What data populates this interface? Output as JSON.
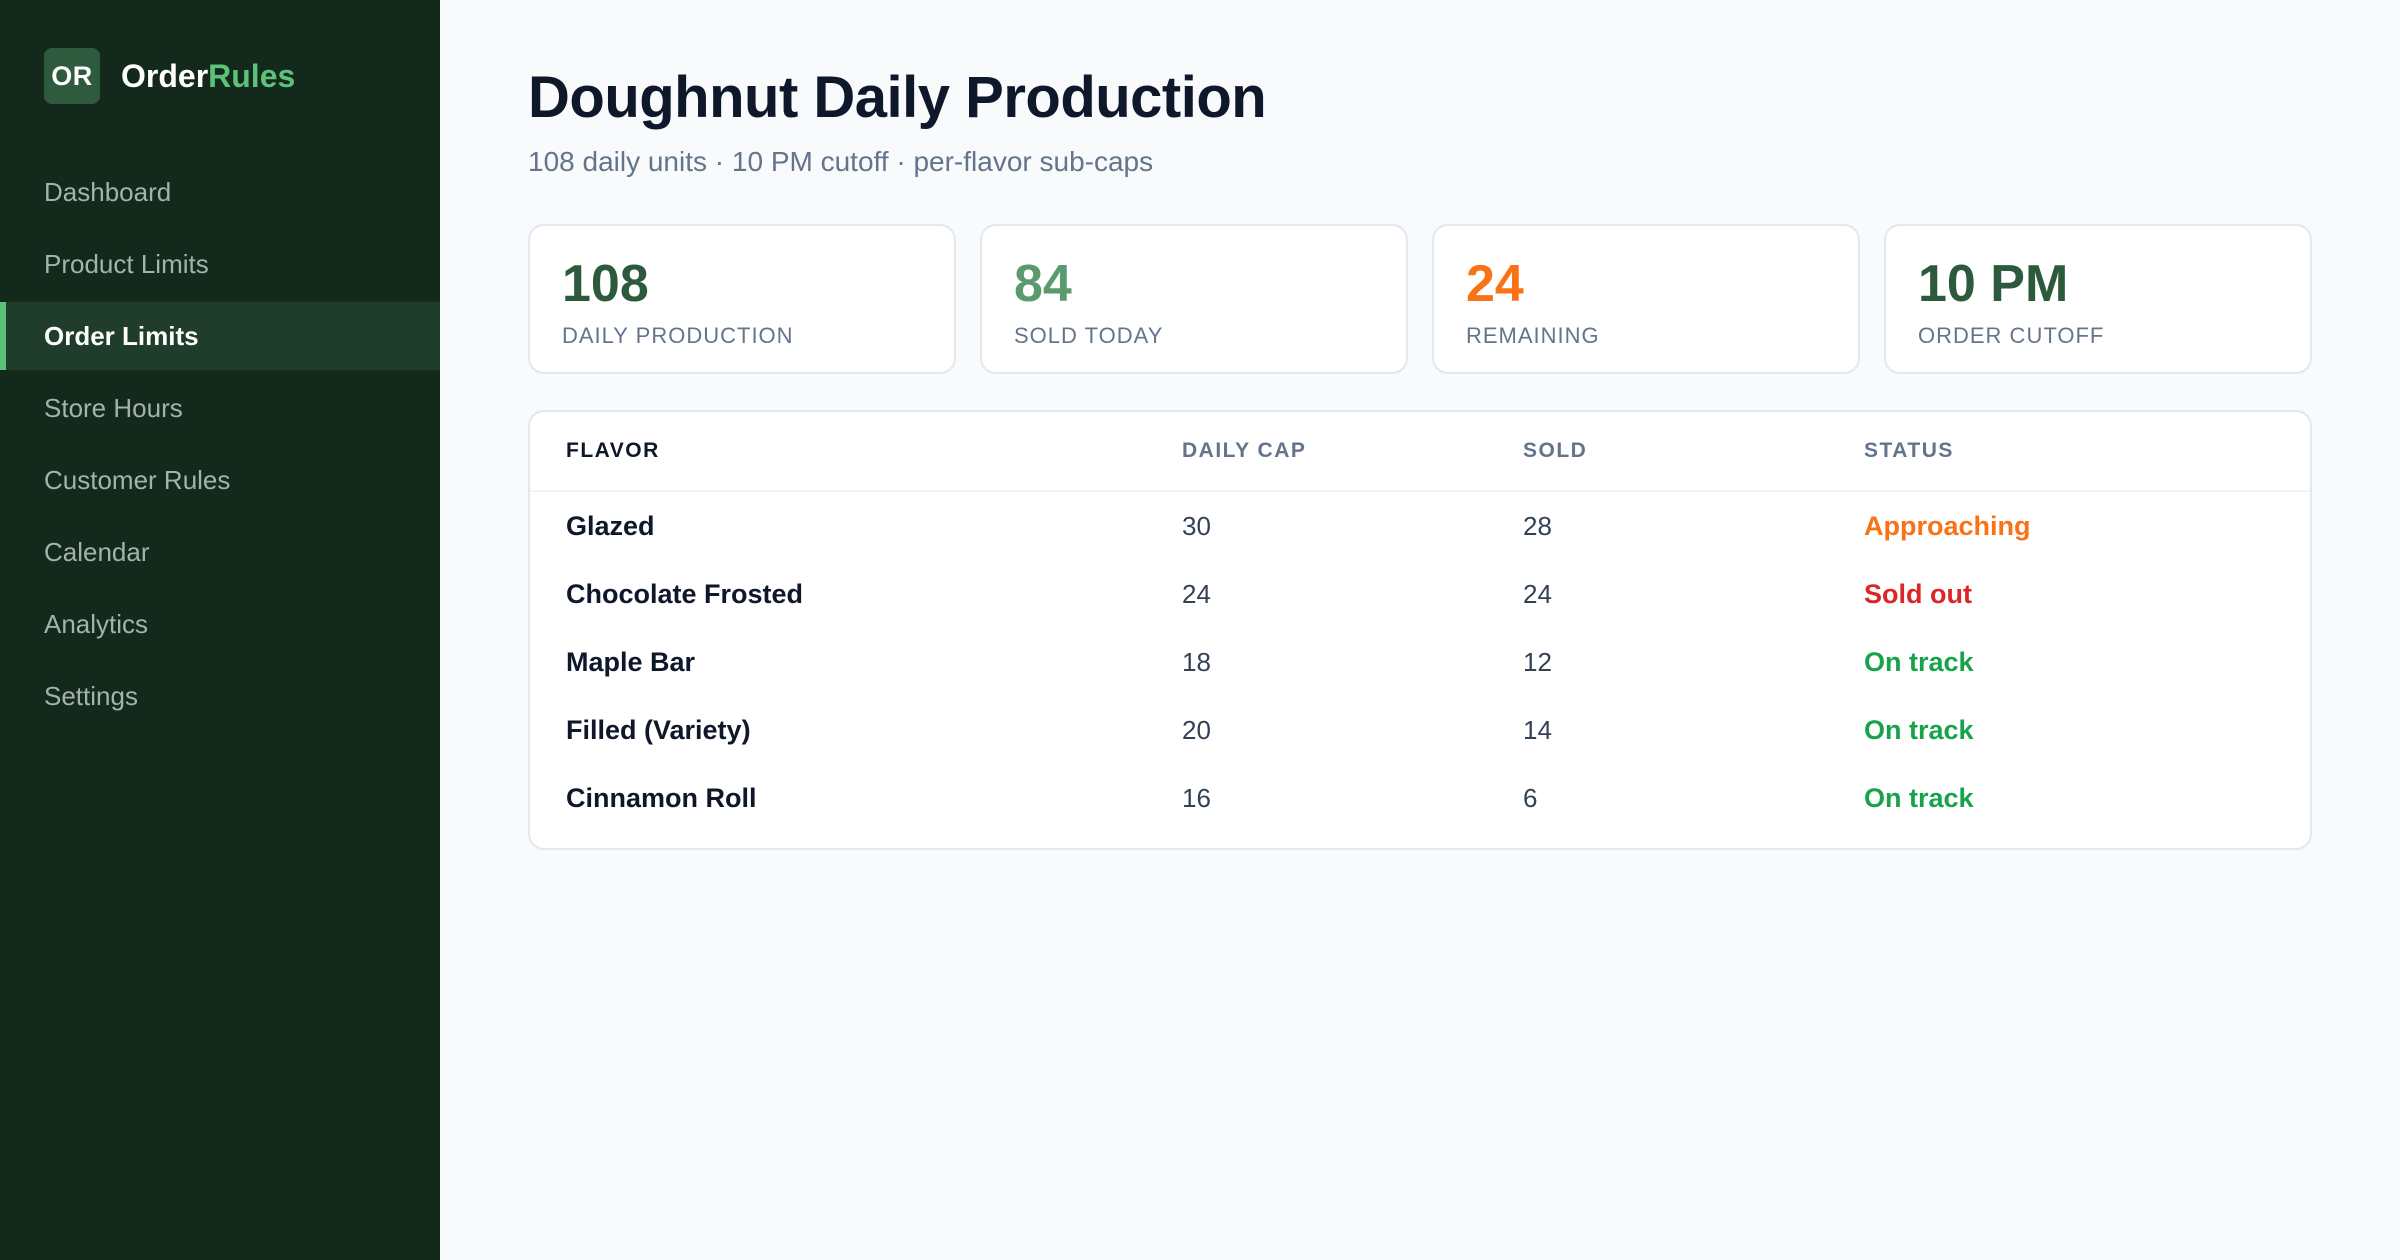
{
  "brand": {
    "logo_text": "OR",
    "name_part1": "Order",
    "name_part2": "Rules",
    "accent_color": "#5cc27a"
  },
  "sidebar": {
    "items": [
      {
        "label": "Dashboard",
        "active": false
      },
      {
        "label": "Product Limits",
        "active": false
      },
      {
        "label": "Order Limits",
        "active": true
      },
      {
        "label": "Store Hours",
        "active": false
      },
      {
        "label": "Customer Rules",
        "active": false
      },
      {
        "label": "Calendar",
        "active": false
      },
      {
        "label": "Analytics",
        "active": false
      },
      {
        "label": "Settings",
        "active": false
      }
    ]
  },
  "header": {
    "title": "Doughnut Daily Production",
    "subtitle": "108 daily units · 10 PM cutoff · per-flavor sub-caps"
  },
  "stats": [
    {
      "value": "108",
      "label": "DAILY PRODUCTION",
      "color": "#2d5a3d"
    },
    {
      "value": "84",
      "label": "SOLD TODAY",
      "color": "#5a9a6e"
    },
    {
      "value": "24",
      "label": "REMAINING",
      "color": "#f97316"
    },
    {
      "value": "10 PM",
      "label": "ORDER CUTOFF",
      "color": "#2d5a3d"
    }
  ],
  "table": {
    "headers": {
      "flavor": "FLAVOR",
      "cap": "DAILY CAP",
      "sold": "SOLD",
      "status": "STATUS"
    },
    "rows": [
      {
        "flavor": "Glazed",
        "cap": "30",
        "sold": "28",
        "status": "Approaching",
        "status_color": "#f97316"
      },
      {
        "flavor": "Chocolate Frosted",
        "cap": "24",
        "sold": "24",
        "status": "Sold out",
        "status_color": "#dc2626"
      },
      {
        "flavor": "Maple Bar",
        "cap": "18",
        "sold": "12",
        "status": "On track",
        "status_color": "#16a34a"
      },
      {
        "flavor": "Filled (Variety)",
        "cap": "20",
        "sold": "14",
        "status": "On track",
        "status_color": "#16a34a"
      },
      {
        "flavor": "Cinnamon Roll",
        "cap": "16",
        "sold": "6",
        "status": "On track",
        "status_color": "#16a34a"
      }
    ]
  }
}
